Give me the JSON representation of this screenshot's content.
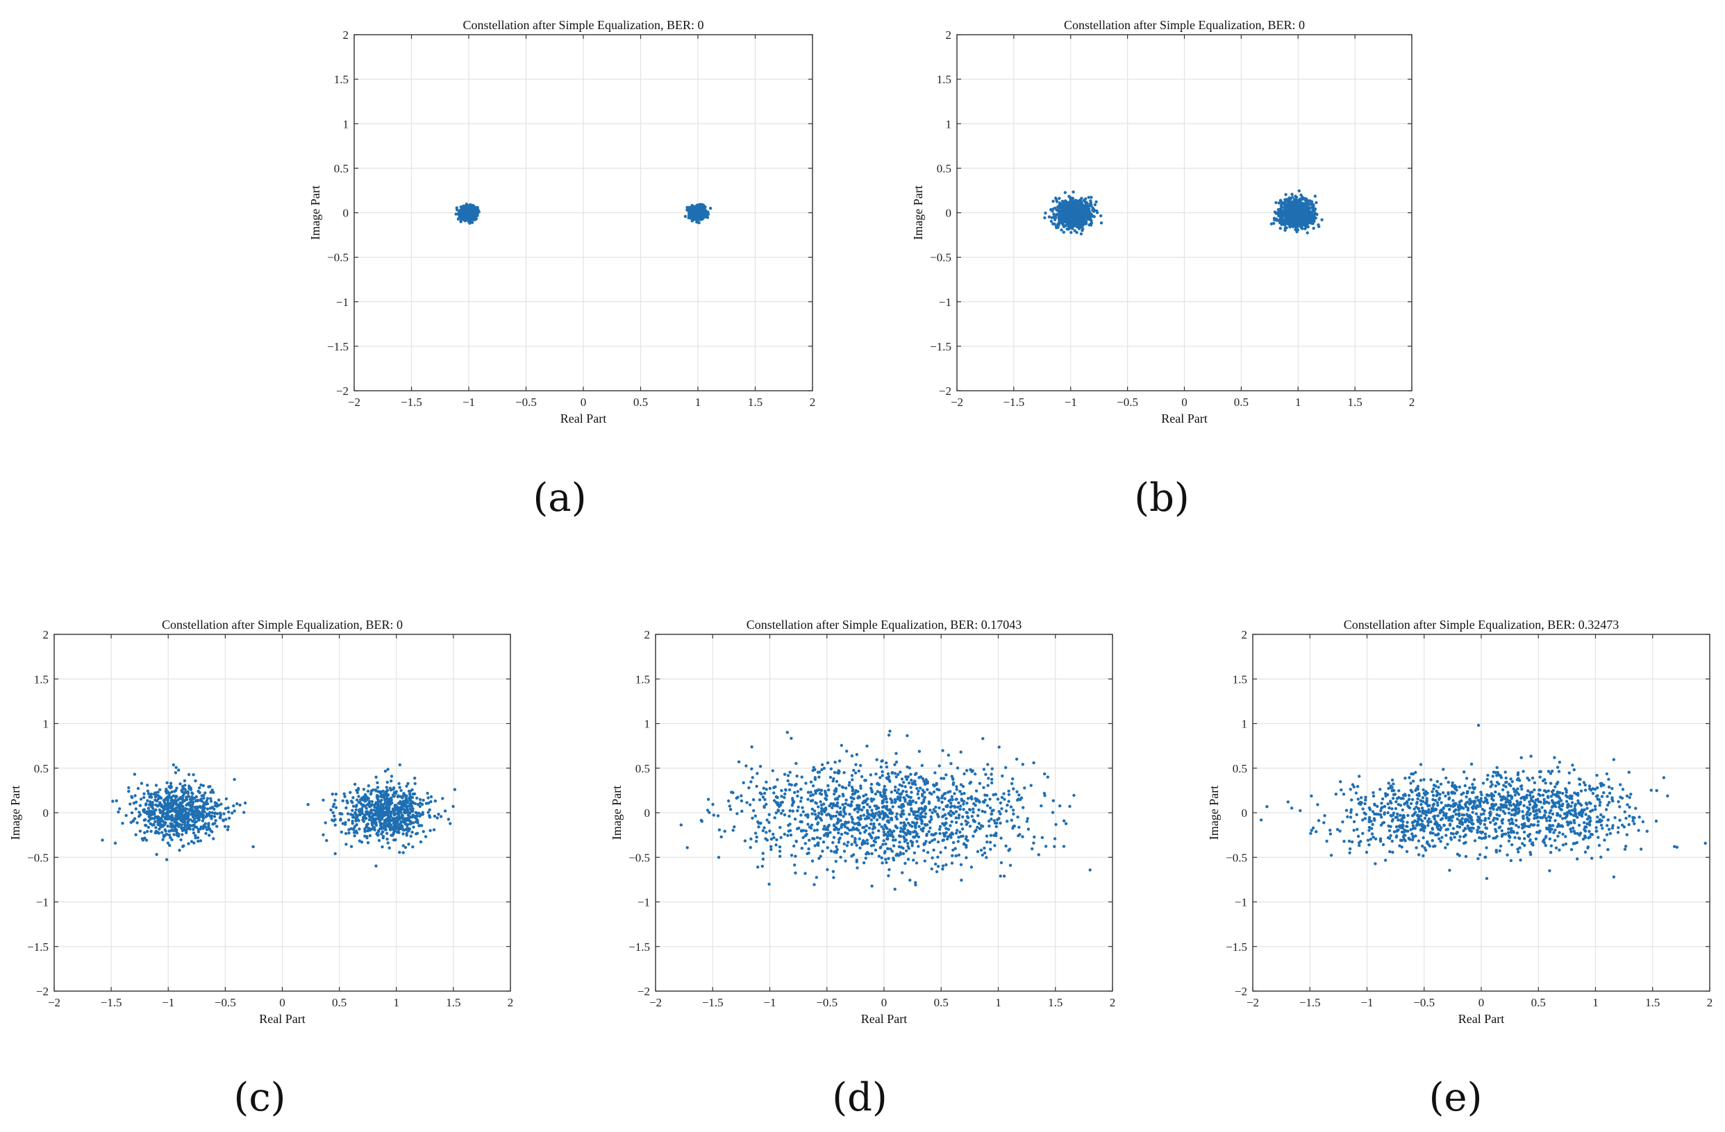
{
  "figure": {
    "panels": [
      {
        "label": "(a)",
        "chart_index": 0
      },
      {
        "label": "(b)",
        "chart_index": 1
      },
      {
        "label": "(c)",
        "chart_index": 2
      },
      {
        "label": "(d)",
        "chart_index": 3
      },
      {
        "label": "(e)",
        "chart_index": 4
      }
    ]
  },
  "colors": {
    "marker": "#1f6fb2",
    "grid": "#e3e3e3",
    "axis": "#333333"
  },
  "chart_data": [
    {
      "type": "scatter",
      "title": "Constellation after Simple Equalization, BER: 0",
      "xlabel": "Real Part",
      "ylabel": "Image Part",
      "xlim": [
        -2,
        2
      ],
      "ylim": [
        -2,
        2
      ],
      "xticks": [
        -2,
        -1.5,
        -1,
        -0.5,
        0,
        0.5,
        1,
        1.5,
        2
      ],
      "yticks": [
        -2,
        -1.5,
        -1,
        -0.5,
        0,
        0.5,
        1,
        1.5,
        2
      ],
      "grid": true,
      "clusters": [
        {
          "center": [
            -1,
            0
          ],
          "sx": 0.035,
          "sy": 0.035,
          "n": 800
        },
        {
          "center": [
            1,
            0
          ],
          "sx": 0.035,
          "sy": 0.035,
          "n": 800
        }
      ]
    },
    {
      "type": "scatter",
      "title": "Constellation after Simple Equalization, BER: 0",
      "xlabel": "Real Part",
      "ylabel": "Image Part",
      "xlim": [
        -2,
        2
      ],
      "ylim": [
        -2,
        2
      ],
      "xticks": [
        -2,
        -1.5,
        -1,
        -0.5,
        0,
        0.5,
        1,
        1.5,
        2
      ],
      "yticks": [
        -2,
        -1.5,
        -1,
        -0.5,
        0,
        0.5,
        1,
        1.5,
        2
      ],
      "grid": true,
      "clusters": [
        {
          "center": [
            -0.97,
            -0.01
          ],
          "sx": 0.075,
          "sy": 0.075,
          "n": 900
        },
        {
          "center": [
            0.99,
            -0.01
          ],
          "sx": 0.075,
          "sy": 0.075,
          "n": 900
        }
      ]
    },
    {
      "type": "scatter",
      "title": "Constellation after Simple Equalization, BER: 0",
      "xlabel": "Real Part",
      "ylabel": "Image Part",
      "xlim": [
        -2,
        2
      ],
      "ylim": [
        -2,
        2
      ],
      "xticks": [
        -2,
        -1.5,
        -1,
        -0.5,
        0,
        0.5,
        1,
        1.5,
        2
      ],
      "yticks": [
        -2,
        -1.5,
        -1,
        -0.5,
        0,
        0.5,
        1,
        1.5,
        2
      ],
      "grid": true,
      "clusters": [
        {
          "center": [
            -0.9,
            0.0
          ],
          "sx": 0.2,
          "sy": 0.16,
          "n": 700
        },
        {
          "center": [
            0.9,
            0.0
          ],
          "sx": 0.2,
          "sy": 0.16,
          "n": 700
        }
      ]
    },
    {
      "type": "scatter",
      "title": "Constellation after Simple Equalization, BER: 0.17043",
      "xlabel": "Real Part",
      "ylabel": "Image Part",
      "xlim": [
        -2,
        2
      ],
      "ylim": [
        -2,
        2
      ],
      "xticks": [
        -2,
        -1.5,
        -1,
        -0.5,
        0,
        0.5,
        1,
        1.5,
        2
      ],
      "yticks": [
        -2,
        -1.5,
        -1,
        -0.5,
        0,
        0.5,
        1,
        1.5,
        2
      ],
      "grid": true,
      "clusters": [
        {
          "center": [
            -0.3,
            0.0
          ],
          "sx": 0.55,
          "sy": 0.3,
          "n": 650
        },
        {
          "center": [
            0.3,
            0.0
          ],
          "sx": 0.55,
          "sy": 0.3,
          "n": 650
        }
      ]
    },
    {
      "type": "scatter",
      "title": "Constellation after Simple Equalization, BER: 0.32473",
      "xlabel": "Real Part",
      "ylabel": "Image Part",
      "xlim": [
        -2,
        2
      ],
      "ylim": [
        -2,
        2
      ],
      "xticks": [
        -2,
        -1.5,
        -1,
        -0.5,
        0,
        0.5,
        1,
        1.5,
        2
      ],
      "yticks": [
        -2,
        -1.5,
        -1,
        -0.5,
        0,
        0.5,
        1,
        1.5,
        2
      ],
      "grid": true,
      "clusters": [
        {
          "center": [
            -0.45,
            0.0
          ],
          "sx": 0.42,
          "sy": 0.22,
          "n": 650
        },
        {
          "center": [
            0.55,
            0.0
          ],
          "sx": 0.42,
          "sy": 0.22,
          "n": 650
        }
      ]
    }
  ]
}
